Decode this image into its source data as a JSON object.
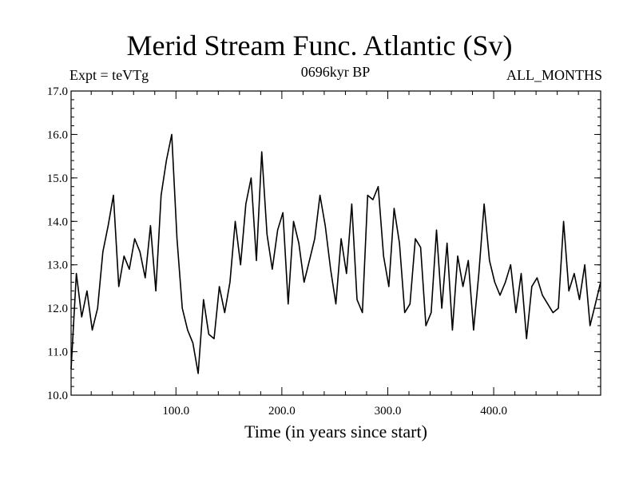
{
  "chart_data": {
    "type": "line",
    "title": "Merid Stream Func. Atlantic (Sv)",
    "top_left_label": "Expt = teVTg",
    "top_center_label": "0696kyr BP",
    "top_right_label": "ALL_MONTHS",
    "xlabel": "Time (in years since start)",
    "ylabel": "",
    "xlim": [
      1,
      501
    ],
    "ylim": [
      10.0,
      17.0
    ],
    "x_ticks": [
      "100.0",
      "200.0",
      "300.0",
      "400.0"
    ],
    "x_tick_values": [
      100,
      200,
      300,
      400
    ],
    "y_ticks": [
      "10.0",
      "11.0",
      "12.0",
      "13.0",
      "14.0",
      "15.0",
      "16.0",
      "17.0"
    ],
    "y_tick_values": [
      10,
      11,
      12,
      13,
      14,
      15,
      16,
      17
    ],
    "series": [
      {
        "name": "Merid Stream Func. Atlantic",
        "color": "#000000",
        "x_start": 1,
        "x_step": 5,
        "values": [
          10.6,
          12.8,
          11.8,
          12.4,
          11.5,
          12.0,
          13.3,
          13.9,
          14.6,
          12.5,
          13.2,
          12.9,
          13.6,
          13.3,
          12.7,
          13.9,
          12.4,
          14.6,
          15.4,
          16.0,
          13.6,
          12.0,
          11.5,
          11.2,
          10.5,
          12.2,
          11.4,
          11.3,
          12.5,
          11.9,
          12.6,
          14.0,
          13.0,
          14.4,
          15.0,
          13.1,
          15.6,
          13.7,
          12.9,
          13.8,
          14.2,
          12.1,
          14.0,
          13.5,
          12.6,
          13.1,
          13.6,
          14.6,
          13.9,
          12.9,
          12.1,
          13.6,
          12.8,
          14.4,
          12.2,
          11.9,
          14.6,
          14.5,
          14.8,
          13.2,
          12.5,
          14.3,
          13.5,
          11.9,
          12.1,
          13.6,
          13.4,
          11.6,
          11.9,
          13.8,
          12.0,
          13.5,
          11.5,
          13.2,
          12.5,
          13.1,
          11.5,
          12.8,
          14.4,
          13.1,
          12.6,
          12.3,
          12.6,
          13.0,
          11.9,
          12.8,
          11.3,
          12.5,
          12.7,
          12.3,
          12.1,
          11.9,
          12.0,
          14.0,
          12.4,
          12.8,
          12.2,
          13.0,
          11.6,
          12.1,
          12.6
        ]
      }
    ]
  }
}
